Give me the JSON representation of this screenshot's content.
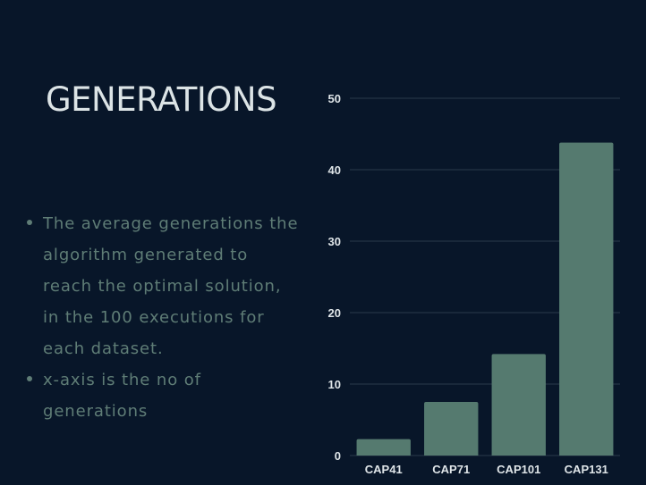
{
  "slide": {
    "title": "GENERATIONS",
    "bullets": [
      "The average generations the algorithm generated to reach the optimal solution, in the 100 executions for each dataset.",
      "x-axis is the no of generations"
    ]
  },
  "colors": {
    "background": "#081629",
    "bar": "#557a6f",
    "gridline": "#2a3a4a",
    "title_text": "#dce4e6",
    "bullet_text": "#5f7d76",
    "axis_text": "#dfe5e8"
  },
  "chart_data": {
    "type": "bar",
    "categories": [
      "CAP41",
      "CAP71",
      "CAP101",
      "CAP131"
    ],
    "values": [
      2.3,
      7.5,
      14.2,
      43.8
    ],
    "ylim": [
      0,
      50
    ],
    "yticks": [
      0,
      10,
      20,
      30,
      40,
      50
    ],
    "ytick_labels": [
      "0",
      "10",
      "20",
      "30",
      "40",
      "50"
    ],
    "grid": true,
    "legend": "none"
  }
}
